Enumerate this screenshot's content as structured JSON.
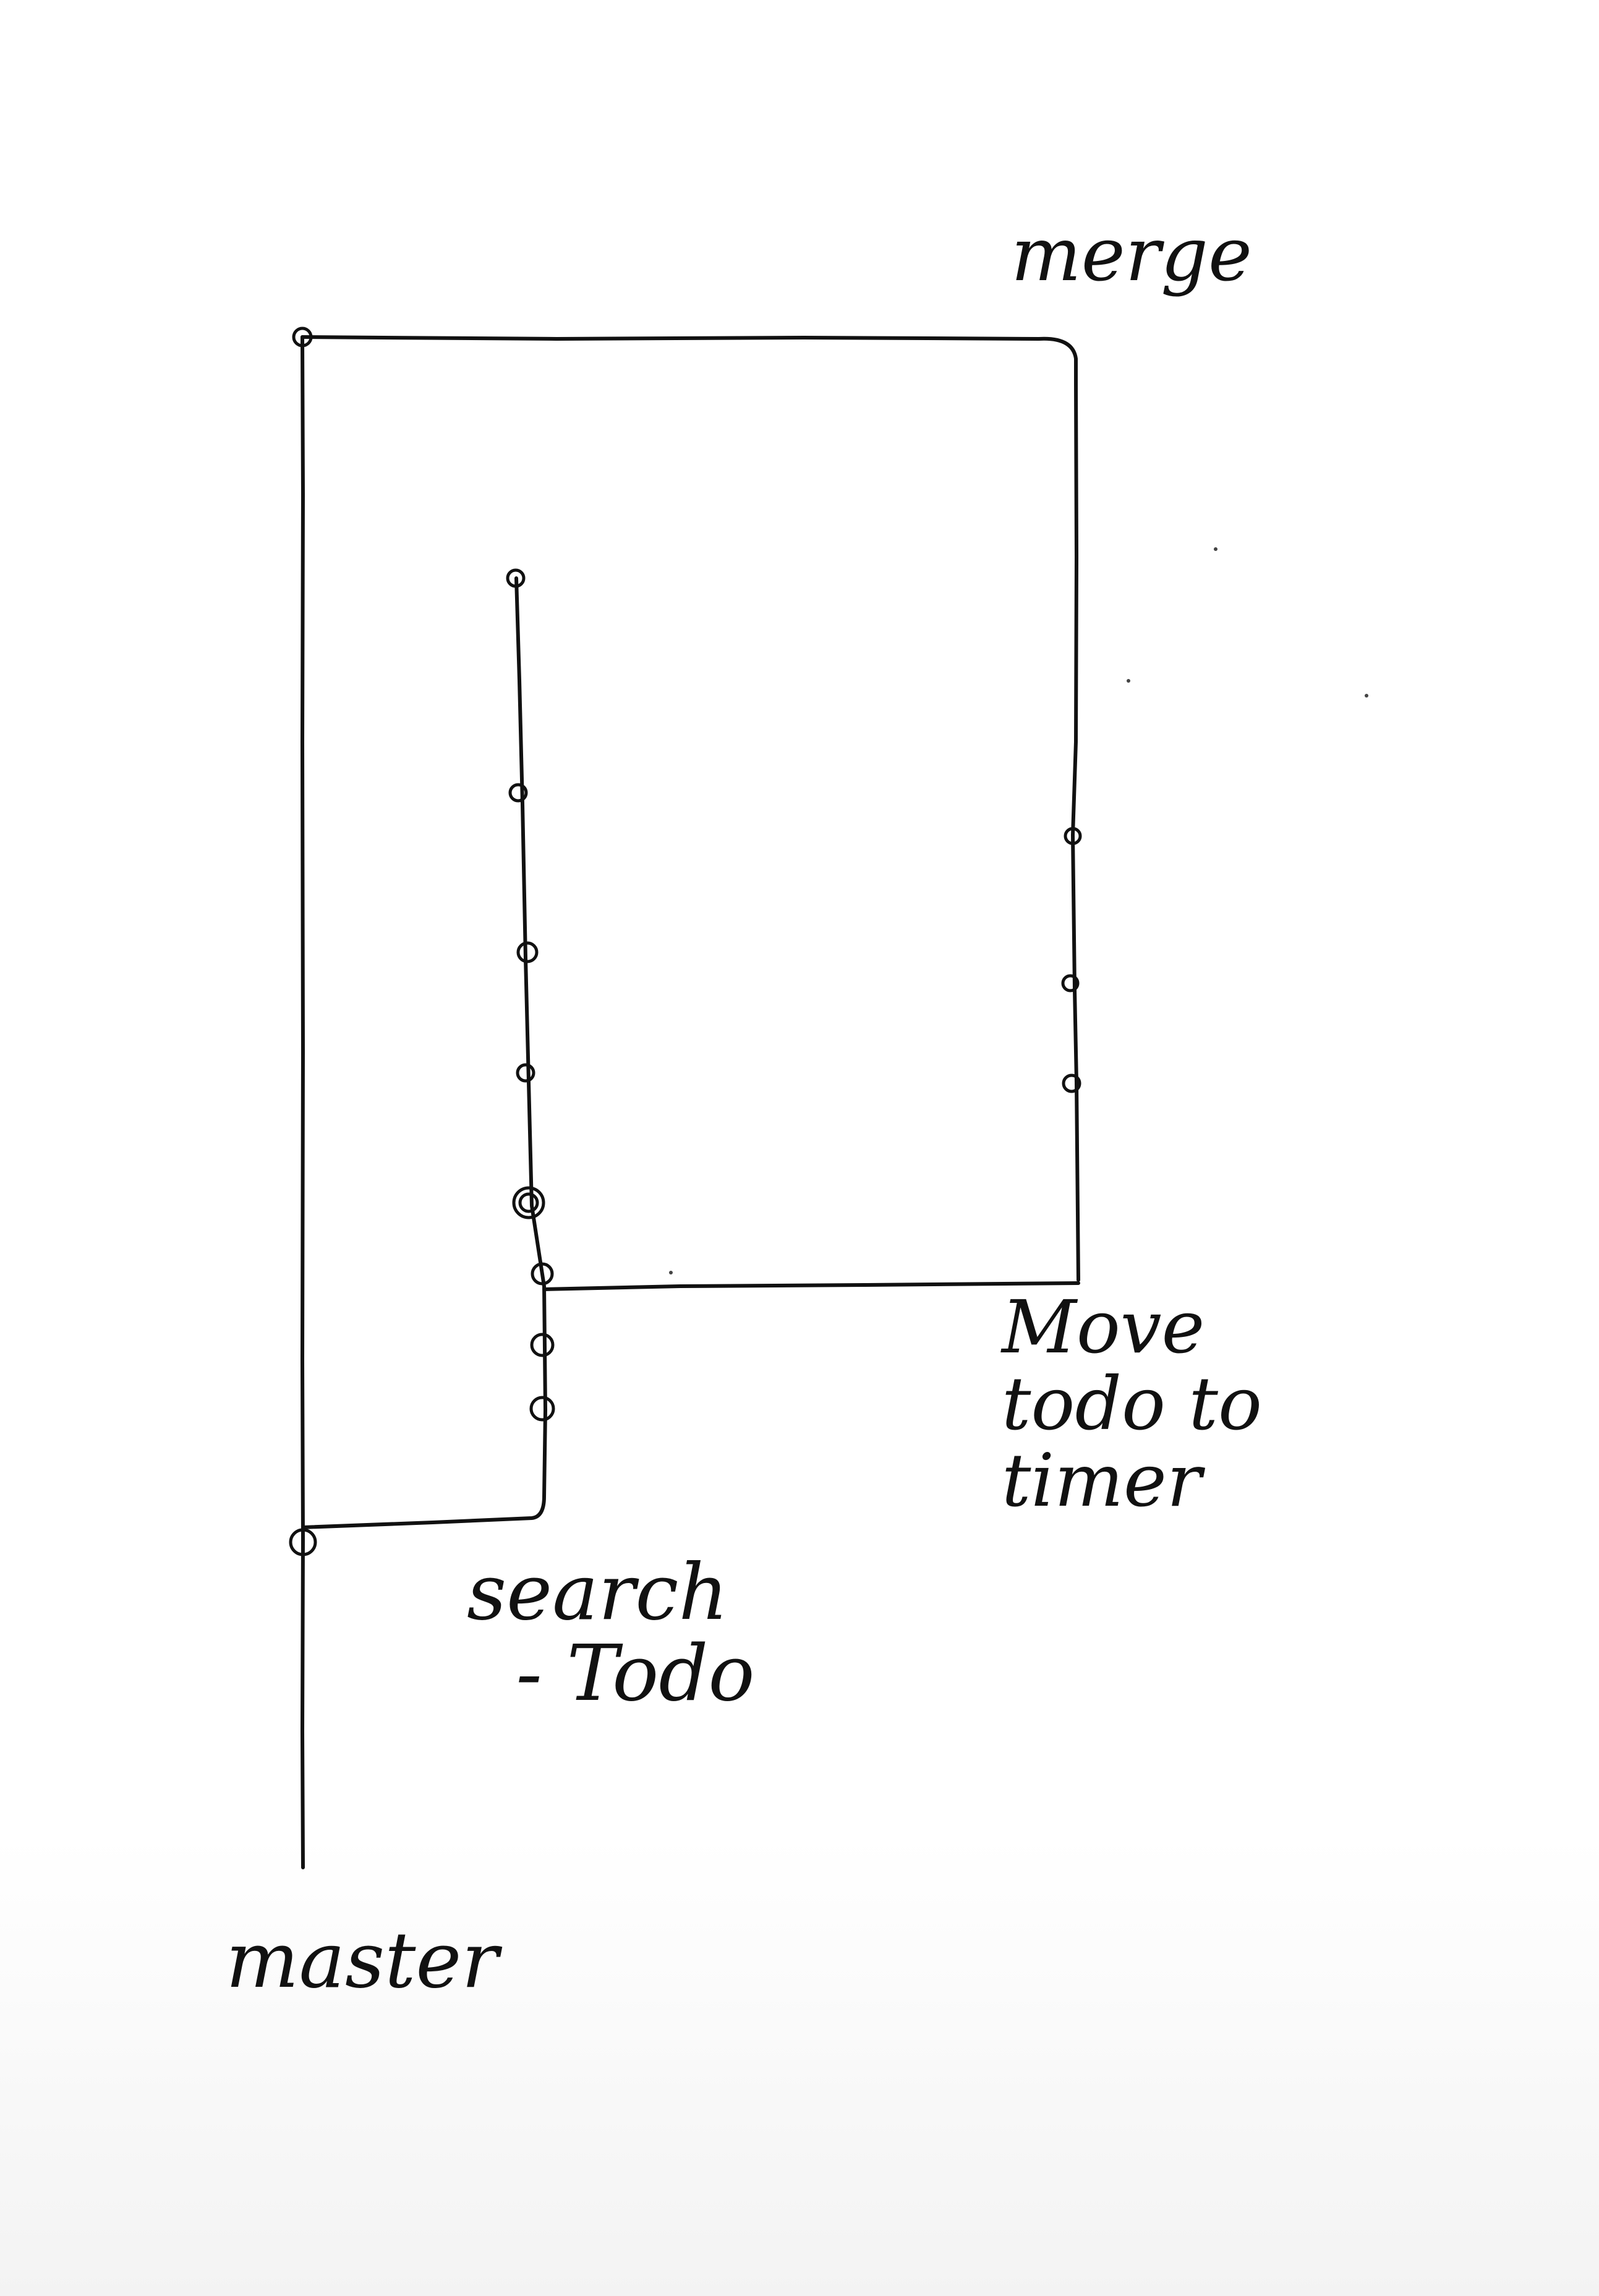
{
  "diagram": {
    "type": "git-branch-sketch",
    "style": "hand-drawn ink on white paper",
    "ink_color": "#111111",
    "paper_color": "#ffffff",
    "labels": {
      "merge": "merge",
      "move_todo_to_timer": "Move\ntodo to\ntimer",
      "search_todo": "search\n  - Todo",
      "master": "master"
    },
    "branches": [
      {
        "id": "master",
        "label": "master",
        "commits": 2
      },
      {
        "id": "search-todo",
        "label": "search - Todo",
        "branches_from": "master",
        "commits": 9
      },
      {
        "id": "move-todo-to-timer",
        "label": "Move todo to timer",
        "branches_from": "search-todo",
        "merges_into": "master",
        "commits": 3
      }
    ]
  }
}
